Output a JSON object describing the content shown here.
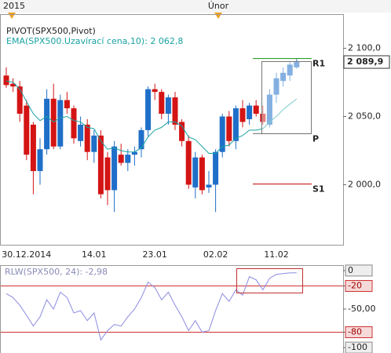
{
  "header": {
    "year": "2015",
    "month": "Únor"
  },
  "chart_data": [
    {
      "type": "candlestick",
      "title": "PIVOT(SPX500,Pivot)",
      "categories": [
        null,
        null,
        null,
        "30.12.2014",
        null,
        null,
        null,
        null,
        null,
        null,
        null,
        null,
        null,
        "14.01",
        null,
        null,
        null,
        null,
        null,
        null,
        null,
        null,
        "23.01",
        null,
        null,
        null,
        null,
        null,
        null,
        null,
        null,
        "02.02",
        null,
        null,
        null,
        null,
        null,
        null,
        null,
        null,
        "11.02",
        null,
        null,
        null
      ],
      "open": [
        2080,
        2074,
        2072,
        2058,
        2044,
        2010,
        2026,
        2063,
        2028,
        2062,
        2056,
        2032,
        2044,
        2024,
        2036,
        2020,
        1996,
        2022,
        2016,
        2022,
        2026,
        2040,
        2070,
        2068,
        2052,
        2064,
        2046,
        2032,
        1998,
        2020,
        1998,
        2000,
        2024,
        2050,
        2032,
        2056,
        2048,
        2058,
        2052,
        2044,
        2066,
        2076,
        2080,
        2086
      ],
      "high": [
        2086,
        2078,
        2076,
        2062,
        2046,
        2034,
        2070,
        2074,
        2066,
        2068,
        2058,
        2050,
        2048,
        2040,
        2040,
        2024,
        2032,
        2030,
        2026,
        2028,
        2042,
        2072,
        2074,
        2070,
        2066,
        2068,
        2048,
        2036,
        2024,
        2022,
        2010,
        2026,
        2052,
        2054,
        2058,
        2062,
        2060,
        2062,
        2058,
        2070,
        2082,
        2086,
        2090,
        2092
      ],
      "low": [
        2071,
        2068,
        2046,
        2018,
        1993,
        2000,
        2022,
        2026,
        2026,
        2052,
        2030,
        2028,
        2018,
        2016,
        1990,
        1985,
        1980,
        2014,
        2010,
        2014,
        2020,
        2035,
        2062,
        2048,
        2044,
        2040,
        2028,
        1997,
        1990,
        1993,
        1994,
        1980,
        2020,
        2028,
        2026,
        2042,
        2044,
        2050,
        2044,
        2042,
        2060,
        2072,
        2076,
        2085
      ],
      "close": [
        2073,
        2072,
        2052,
        2022,
        2010,
        2026,
        2063,
        2028,
        2062,
        2056,
        2034,
        2044,
        2024,
        2036,
        1993,
        1996,
        2028,
        2016,
        2022,
        2024,
        2040,
        2070,
        2068,
        2052,
        2064,
        2044,
        2032,
        2000,
        2020,
        1996,
        2000,
        2024,
        2050,
        2032,
        2056,
        2046,
        2058,
        2052,
        2046,
        2066,
        2078,
        2082,
        2088,
        2089.9
      ],
      "up_color": "#1f6fc9",
      "down_color": "#d41414",
      "series": [
        {
          "name": "EMA(SPX500.Uzavírací cena,10): 2 062,8",
          "color": "#1aa3a3",
          "values": [
            2076,
            2075,
            2070,
            2061,
            2052,
            2047,
            2050,
            2046,
            2049,
            2050,
            2047,
            2046,
            2042,
            2041,
            2032,
            2026,
            2027,
            2025,
            2024,
            2024,
            2027,
            2035,
            2040,
            2042,
            2046,
            2046,
            2043,
            2035,
            2033,
            2028,
            2023,
            2023,
            2028,
            2029,
            2034,
            2036,
            2040,
            2040,
            2041,
            2046,
            2050,
            2055,
            2059,
            2062.8
          ]
        }
      ],
      "levels": [
        {
          "name": "R1",
          "value": 2092.5,
          "color": "#2ca02c"
        },
        {
          "name": "P",
          "value": 2037.4,
          "color": "#888888"
        },
        {
          "name": "S1",
          "value": 2000.5,
          "color": "#c81e1e"
        }
      ],
      "last_price": {
        "value": 2089.9,
        "label": "2 089,9"
      },
      "ylim": [
        1956,
        2125
      ],
      "yticks": [
        {
          "value": 2000,
          "label": "2 000,0"
        },
        {
          "value": 2050,
          "label": "2 050,0"
        },
        {
          "value": 2100,
          "label": "2 100,0"
        }
      ]
    },
    {
      "type": "line",
      "title": "RLW(SPX500, 24): -2,98",
      "color": "#8a8ae0",
      "values": [
        -30,
        -35,
        -45,
        -58,
        -72,
        -60,
        -38,
        -50,
        -28,
        -35,
        -55,
        -52,
        -65,
        -55,
        -90,
        -78,
        -70,
        -72,
        -60,
        -50,
        -35,
        -15,
        -22,
        -38,
        -28,
        -45,
        -60,
        -78,
        -65,
        -80,
        -78,
        -52,
        -30,
        -40,
        -25,
        -32,
        -8,
        -12,
        -25,
        -10,
        -5,
        -4,
        -3,
        -2.98
      ],
      "levels": [
        -20,
        -80
      ],
      "level_color": "#d03030",
      "ylim": [
        -107,
        7
      ],
      "yticks": [
        0,
        -20,
        {
          "value": -50,
          "label": "-50,00"
        },
        -80,
        -100
      ]
    }
  ]
}
